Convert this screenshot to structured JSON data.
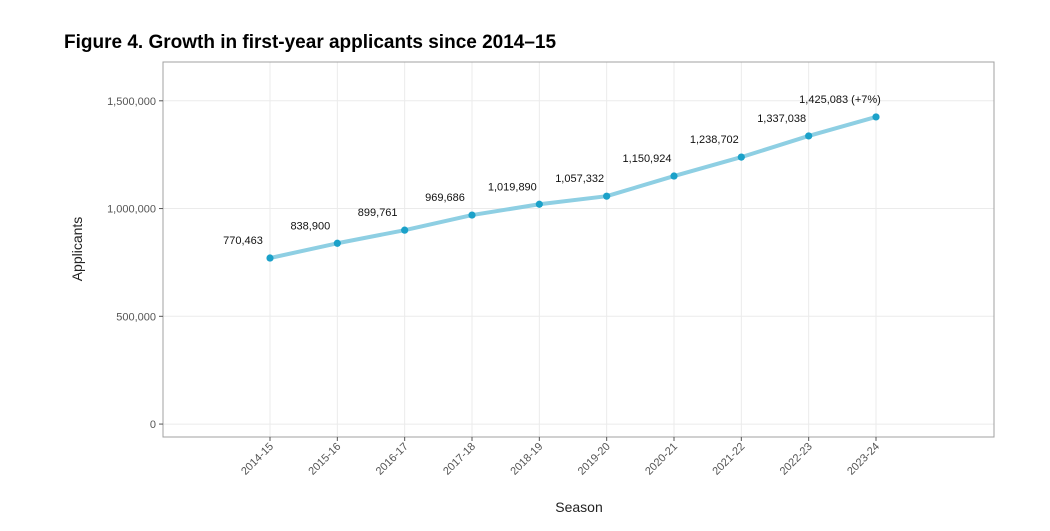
{
  "figure_title": "Figure 4. Growth in first-year applicants since 2014–15",
  "chart_data": {
    "type": "line",
    "title": "",
    "xlabel": "Season",
    "ylabel": "Applicants",
    "categories": [
      "2014-15",
      "2015-16",
      "2016-17",
      "2017-18",
      "2018-19",
      "2019-20",
      "2020-21",
      "2021-22",
      "2022-23",
      "2023-24"
    ],
    "values": [
      770463,
      838900,
      899761,
      969686,
      1019890,
      1057332,
      1150924,
      1238702,
      1337038,
      1425083
    ],
    "data_labels": [
      "770,463",
      "838,900",
      "899,761",
      "969,686",
      "1,019,890",
      "1,057,332",
      "1,150,924",
      "1,238,702",
      "1,337,038",
      "1,425,083 (+7%)"
    ],
    "y_ticks": [
      0,
      500000,
      1000000,
      1500000
    ],
    "y_tick_labels": [
      "0",
      "500,000",
      "1,000,000",
      "1,500,000"
    ],
    "ylim": [
      -60000,
      1680000
    ],
    "grid": true,
    "legend": "none",
    "colors": {
      "line": "#8ecfe3",
      "point": "#1ba1c9",
      "grid": "#ebebeb",
      "panel_border": "#a0a0a0"
    }
  }
}
